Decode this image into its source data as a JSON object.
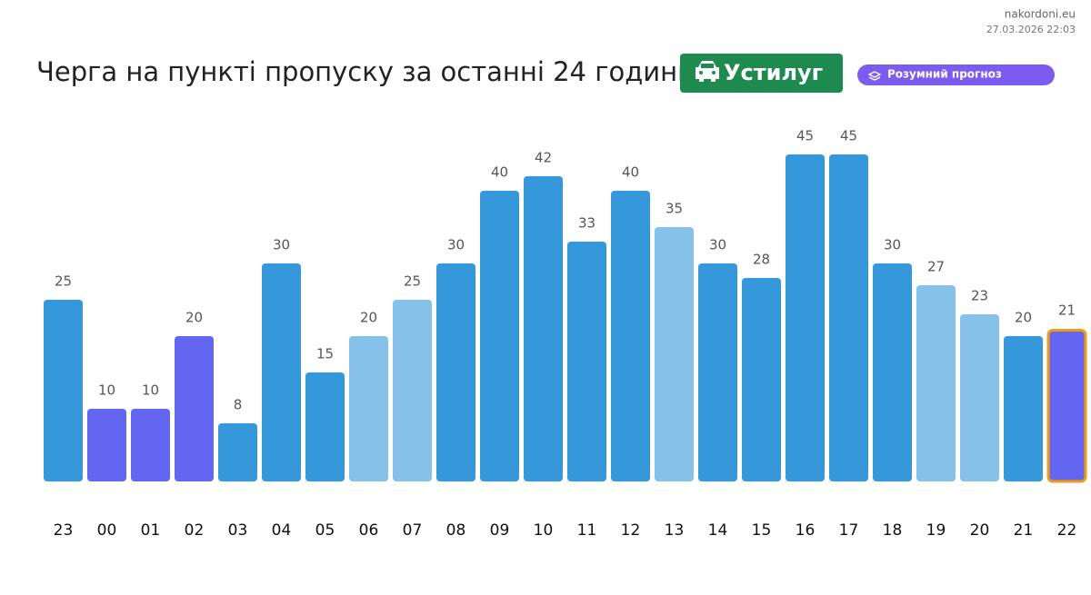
{
  "site": "nakordoni.eu",
  "timestamp": "27.03.2026 22:03",
  "chart_data": {
    "type": "bar",
    "title": "Черга на пункті пропуску за останні 24 години",
    "badge": "Устилуг",
    "pill": "Розумний прогноз",
    "categories": [
      "23",
      "00",
      "01",
      "02",
      "03",
      "04",
      "05",
      "06",
      "07",
      "08",
      "09",
      "10",
      "11",
      "12",
      "13",
      "14",
      "15",
      "16",
      "17",
      "18",
      "19",
      "20",
      "21",
      "22"
    ],
    "values": [
      25,
      10,
      10,
      20,
      8,
      30,
      15,
      20,
      25,
      30,
      40,
      42,
      33,
      40,
      35,
      30,
      28,
      45,
      45,
      30,
      27,
      23,
      20,
      21
    ],
    "colors": [
      "#3498db",
      "#6366f1",
      "#6366f1",
      "#6366f1",
      "#3498db",
      "#3498db",
      "#3498db",
      "#85c1e9",
      "#85c1e9",
      "#3498db",
      "#3498db",
      "#3498db",
      "#3498db",
      "#3498db",
      "#85c1e9",
      "#3498db",
      "#3498db",
      "#3498db",
      "#3498db",
      "#3498db",
      "#85c1e9",
      "#85c1e9",
      "#3498db",
      "#6366f1"
    ],
    "highlight": "22",
    "highlight_color": "#f39c12"
  }
}
